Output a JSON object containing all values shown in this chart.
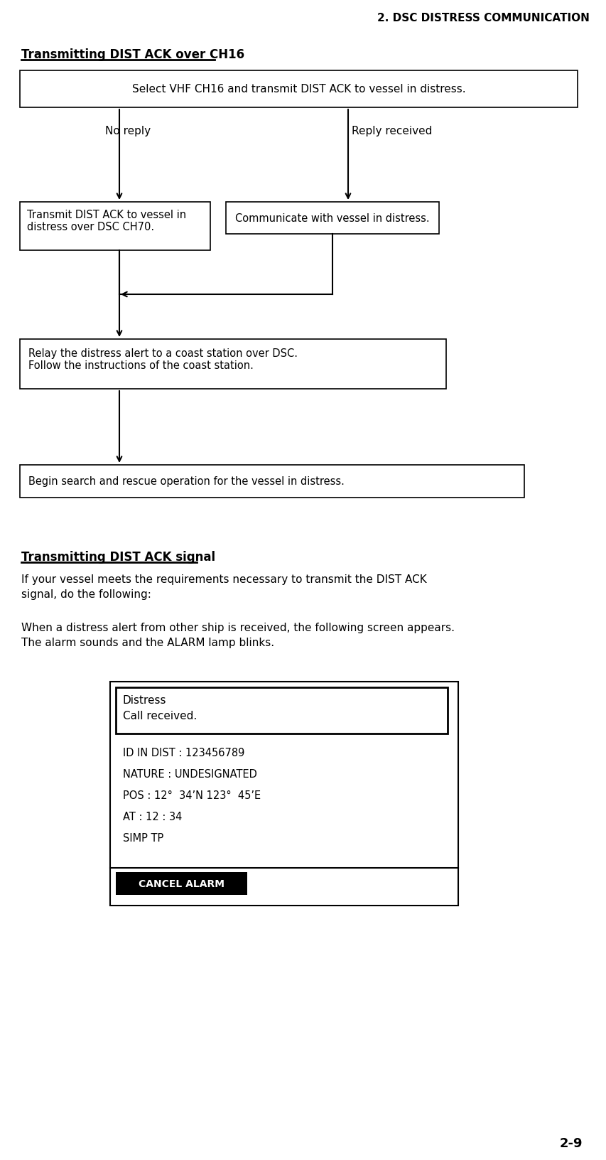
{
  "page_header": "2. DSC DISTRESS COMMUNICATION",
  "section1_title": "Transmitting DIST ACK over CH16",
  "box1_text": "Select VHF CH16 and transmit DIST ACK to vessel in distress.",
  "label_no_reply": "No reply",
  "label_reply_received": "Reply received",
  "box2_text": "Transmit DIST ACK to vessel in\ndistress over DSC CH70.",
  "box3_text": "Communicate with vessel in distress.",
  "box4_text": "Relay the distress alert to a coast station over DSC.\nFollow the instructions of the coast station.",
  "box5_text": "Begin search and rescue operation for the vessel in distress.",
  "section2_title": "Transmitting DIST ACK signal",
  "para1": "If your vessel meets the requirements necessary to transmit the DIST ACK\nsignal, do the following:",
  "para2": "When a distress alert from other ship is received, the following screen appears.\nThe alarm sounds and the ALARM lamp blinks.",
  "screen_header": "Distress\nCall received.",
  "screen_line1": "ID IN DIST : 123456789",
  "screen_line2": "NATURE : UNDESIGNATED",
  "screen_line3": "POS : 12°  34’N 123°  45’E",
  "screen_line4": "AT : 12 : 34",
  "screen_line5": "SIMP TP",
  "cancel_alarm": "CANCEL ALARM",
  "page_number": "2-9",
  "bg_color": "#ffffff",
  "text_color": "#000000",
  "box_edge_color": "#000000",
  "cancel_bg": "#000000",
  "cancel_fg": "#ffffff"
}
